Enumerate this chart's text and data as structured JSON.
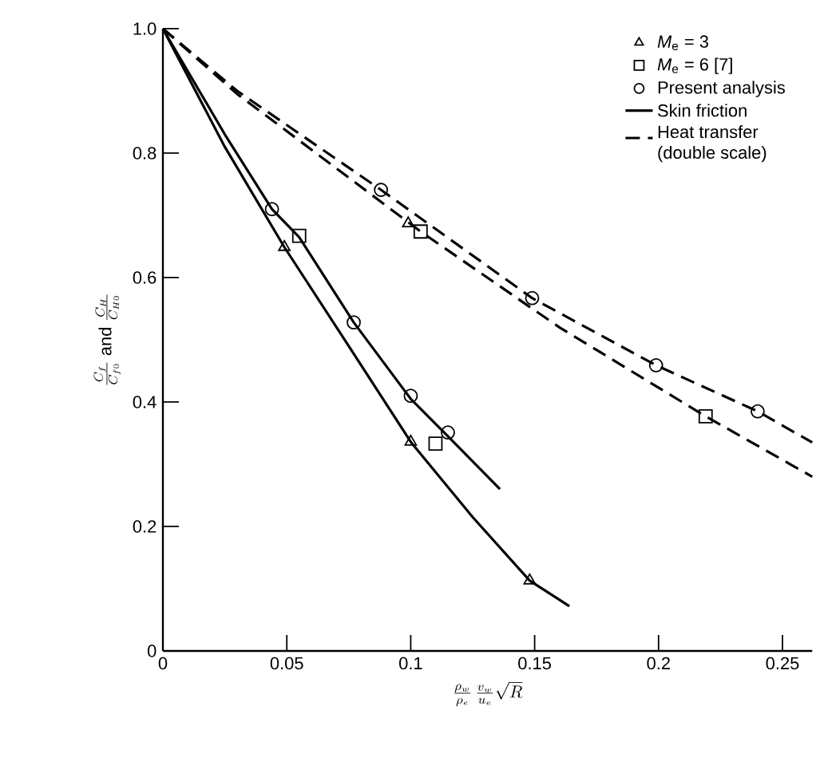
{
  "chart_data": {
    "type": "line",
    "xlabel": "\\frac{\\rho_w}{\\rho_e}\\,\\frac{v_w}{u_e}\\sqrt{R}",
    "ylabel": "\\frac{C_f}{C_{f0}}\\ \\mathrm{and}\\ \\frac{C_H}{C_{H0}}",
    "xlim": [
      0,
      0.262
    ],
    "ylim": [
      0,
      1.0
    ],
    "xticks": [
      0,
      0.05,
      0.1,
      0.15,
      0.2,
      0.25
    ],
    "yticks": [
      0,
      0.2,
      0.4,
      0.6,
      0.8,
      {
        "value": 1.0,
        "label": "1.0"
      }
    ],
    "grid": false,
    "legend": "top right",
    "series": [
      {
        "name": "*M*$_{e}$ = 3",
        "type": "scatter",
        "marker": "triangle",
        "color": "#000000",
        "x": [
          0.049,
          0.1,
          0.148,
          0.099
        ],
        "values": [
          0.649,
          0.336,
          0.113,
          0.687
        ]
      },
      {
        "name": "*M*$_{e}$ = 6  [7]",
        "type": "scatter",
        "marker": "square",
        "color": "#000000",
        "x": [
          0.055,
          0.11,
          0.104,
          0.219
        ],
        "values": [
          0.667,
          0.333,
          0.674,
          0.377
        ]
      },
      {
        "name": "Present analysis",
        "type": "scatter",
        "marker": "circle",
        "color": "#000000",
        "x": [
          0.044,
          0.077,
          0.1,
          0.115,
          0.088,
          0.149,
          0.199,
          0.24
        ],
        "values": [
          0.71,
          0.528,
          0.41,
          0.351,
          0.741,
          0.567,
          0.459,
          0.385
        ]
      },
      {
        "name": "Skin friction",
        "line_style": "solid",
        "color": "#000000",
        "x": [
          0,
          0.025,
          0.049,
          0.075,
          0.1,
          0.125,
          0.148,
          0.164
        ],
        "values": [
          1.0,
          0.81,
          0.649,
          0.49,
          0.336,
          0.215,
          0.113,
          0.072
        ]
      },
      {
        "line_style": "solid",
        "color": "#000000",
        "x": [
          0,
          0.025,
          0.044,
          0.055,
          0.077,
          0.1,
          0.115,
          0.136
        ],
        "values": [
          1.0,
          0.83,
          0.71,
          0.665,
          0.528,
          0.405,
          0.345,
          0.26
        ]
      },
      {
        "name": "Heat transfer (double scale)",
        "line_style": "dashed",
        "color": "#000000",
        "x": [
          0,
          0.03,
          0.088,
          0.149,
          0.199,
          0.24,
          0.262
        ],
        "values": [
          1.0,
          0.9,
          0.741,
          0.567,
          0.459,
          0.385,
          0.335
        ]
      },
      {
        "line_style": "dashed",
        "color": "#000000",
        "x": [
          0,
          0.03,
          0.104,
          0.16,
          0.219,
          0.262
        ],
        "values": [
          1.0,
          0.895,
          0.674,
          0.52,
          0.377,
          0.28
        ]
      }
    ]
  }
}
